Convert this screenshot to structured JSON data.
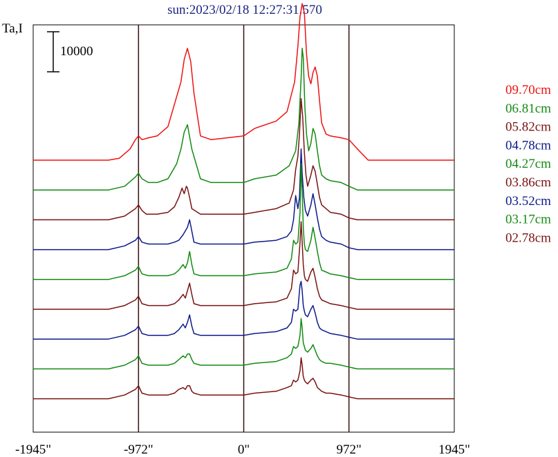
{
  "chart_data": {
    "type": "line",
    "title": "sun:2023/02/18 12:27:31.570",
    "ylabel": "Ta,I",
    "xlabel": "",
    "x_ticks": [
      {
        "value": -1945,
        "label": "-1945\""
      },
      {
        "value": -972,
        "label": "-972\""
      },
      {
        "value": 0,
        "label": "0\""
      },
      {
        "value": 972,
        "label": "972\""
      },
      {
        "value": 1945,
        "label": "1945\""
      }
    ],
    "xlim": [
      -1945,
      1945
    ],
    "vertical_lines": [
      -972,
      0,
      972
    ],
    "scale_bar": {
      "label": "10000",
      "value": 10000
    },
    "grid": false,
    "legend_position": "right",
    "series": [
      {
        "name": "09.70cm",
        "color": "#ee1111",
        "baseline": 80000,
        "x": [
          -1945,
          -1250,
          -1150,
          -1050,
          -1000,
          -972,
          -940,
          -880,
          -800,
          -700,
          -580,
          -550,
          -520,
          -490,
          -460,
          -400,
          -300,
          0,
          100,
          300,
          400,
          470,
          500,
          520,
          540,
          560,
          580,
          600,
          620,
          640,
          660,
          680,
          700,
          720,
          760,
          800,
          900,
          972,
          1050,
          1150,
          1945
        ],
        "y": [
          0,
          0,
          500,
          3000,
          5500,
          6500,
          5500,
          6000,
          6500,
          9000,
          21000,
          27000,
          30000,
          26500,
          18000,
          6500,
          5500,
          6500,
          8500,
          10500,
          13000,
          21000,
          30500,
          38500,
          42000,
          39500,
          28500,
          22500,
          20500,
          23500,
          25000,
          22500,
          16000,
          10000,
          7000,
          6500,
          6000,
          5500,
          3000,
          0,
          0
        ]
      },
      {
        "name": "06.81cm",
        "color": "#128a12",
        "baseline": 72000,
        "x": [
          -1945,
          -1250,
          -1100,
          -1000,
          -972,
          -940,
          -880,
          -800,
          -700,
          -620,
          -580,
          -550,
          -520,
          -480,
          -400,
          -300,
          0,
          100,
          300,
          420,
          480,
          510,
          530,
          540,
          550,
          565,
          580,
          600,
          620,
          640,
          660,
          680,
          700,
          720,
          760,
          800,
          900,
          972,
          1050,
          1150,
          1945
        ],
        "y": [
          0,
          0,
          1000,
          3500,
          4500,
          3000,
          2000,
          2000,
          3000,
          7000,
          11000,
          15500,
          17500,
          11000,
          3000,
          2000,
          2000,
          3000,
          4000,
          6500,
          10500,
          18000,
          30000,
          38000,
          35500,
          22000,
          15000,
          10500,
          12500,
          16500,
          15000,
          10500,
          6500,
          4000,
          3000,
          2500,
          2000,
          1000,
          0,
          0,
          0
        ]
      },
      {
        "name": "05.82cm",
        "color": "#7a1212",
        "baseline": 64000,
        "x": [
          -1945,
          -1250,
          -1100,
          -1000,
          -972,
          -940,
          -900,
          -880,
          -800,
          -700,
          -640,
          -600,
          -570,
          -550,
          -530,
          -520,
          -500,
          -480,
          -400,
          -300,
          0,
          100,
          300,
          420,
          460,
          480,
          500,
          515,
          530,
          545,
          560,
          575,
          590,
          620,
          640,
          660,
          680,
          700,
          720,
          760,
          800,
          900,
          972,
          1050,
          1150,
          1500,
          1945
        ],
        "y": [
          0,
          0,
          1000,
          3000,
          4000,
          2500,
          1500,
          1500,
          1500,
          2000,
          3500,
          6000,
          8500,
          7000,
          9000,
          8500,
          6000,
          3000,
          1500,
          1500,
          1500,
          2000,
          3000,
          4500,
          8000,
          13500,
          17000,
          23000,
          32500,
          27500,
          18000,
          12000,
          9000,
          12000,
          14500,
          13000,
          9500,
          6000,
          4000,
          3000,
          2000,
          1500,
          500,
          0,
          0,
          0,
          0
        ]
      },
      {
        "name": "04.78cm",
        "color": "#0c1a8c",
        "baseline": 56000,
        "x": [
          -1945,
          -1250,
          -1100,
          -1000,
          -972,
          -940,
          -880,
          -800,
          -700,
          -640,
          -600,
          -560,
          -520,
          -500,
          -480,
          -460,
          -400,
          -300,
          0,
          100,
          300,
          400,
          440,
          460,
          480,
          500,
          515,
          530,
          540,
          555,
          570,
          590,
          620,
          640,
          660,
          680,
          700,
          720,
          760,
          800,
          900,
          972,
          1050,
          1150,
          1945
        ],
        "y": [
          0,
          0,
          1000,
          2500,
          3500,
          2000,
          1500,
          1500,
          1500,
          2000,
          2500,
          4000,
          6000,
          8000,
          5000,
          2000,
          1500,
          1500,
          1500,
          2000,
          2500,
          3500,
          5000,
          8000,
          14500,
          11000,
          14000,
          27000,
          20500,
          14000,
          10500,
          9000,
          12000,
          15000,
          12000,
          8500,
          5500,
          3500,
          2500,
          2000,
          1500,
          500,
          0,
          0,
          0
        ]
      },
      {
        "name": "04.27cm",
        "color": "#128a12",
        "baseline": 48000,
        "x": [
          -1945,
          -1250,
          -1100,
          -1000,
          -972,
          -940,
          -880,
          -800,
          -700,
          -640,
          -600,
          -560,
          -540,
          -520,
          -500,
          -480,
          -460,
          -400,
          -300,
          0,
          100,
          300,
          400,
          440,
          460,
          480,
          500,
          520,
          530,
          540,
          550,
          560,
          570,
          590,
          620,
          640,
          660,
          680,
          700,
          720,
          760,
          800,
          900,
          972,
          1050,
          1150,
          1945
        ],
        "y": [
          0,
          0,
          1000,
          2500,
          3500,
          1500,
          1000,
          1000,
          1000,
          1500,
          2500,
          4000,
          3000,
          4500,
          7500,
          4000,
          1500,
          1000,
          1000,
          1000,
          1500,
          2000,
          3000,
          5500,
          10500,
          9500,
          10000,
          18000,
          31000,
          24000,
          14000,
          9500,
          8000,
          7500,
          10500,
          14000,
          11000,
          7500,
          4500,
          2500,
          2000,
          1500,
          1000,
          500,
          0,
          0,
          0
        ]
      },
      {
        "name": "03.86cm",
        "color": "#7a1212",
        "baseline": 40000,
        "x": [
          -1945,
          -1250,
          -1100,
          -1000,
          -972,
          -940,
          -880,
          -800,
          -700,
          -640,
          -600,
          -560,
          -540,
          -520,
          -500,
          -480,
          -460,
          -400,
          -300,
          0,
          100,
          300,
          400,
          440,
          460,
          480,
          500,
          520,
          530,
          540,
          550,
          560,
          570,
          590,
          620,
          640,
          660,
          680,
          700,
          720,
          760,
          800,
          900,
          972,
          1050,
          1150,
          1945
        ],
        "y": [
          0,
          0,
          1000,
          2500,
          3500,
          1500,
          1000,
          1000,
          1000,
          1500,
          2500,
          4000,
          3000,
          5000,
          7000,
          4000,
          1500,
          1000,
          1000,
          1000,
          1500,
          2000,
          3000,
          5500,
          10500,
          9500,
          10000,
          18000,
          23500,
          18000,
          12000,
          9000,
          8000,
          7500,
          10000,
          11000,
          8500,
          5500,
          3500,
          2500,
          2000,
          1500,
          1000,
          500,
          0,
          0,
          0
        ]
      },
      {
        "name": "03.52cm",
        "color": "#0c1a8c",
        "baseline": 32000,
        "x": [
          -1945,
          -1250,
          -1100,
          -1000,
          -972,
          -940,
          -880,
          -800,
          -700,
          -640,
          -600,
          -560,
          -540,
          -520,
          -500,
          -480,
          -460,
          -400,
          -300,
          0,
          100,
          300,
          400,
          440,
          460,
          480,
          500,
          520,
          530,
          540,
          550,
          560,
          570,
          590,
          620,
          640,
          660,
          680,
          700,
          720,
          760,
          800,
          900,
          972,
          1050,
          1150,
          1945
        ],
        "y": [
          0,
          0,
          1000,
          2500,
          3500,
          1500,
          1000,
          1000,
          1000,
          1500,
          2500,
          4000,
          3000,
          4500,
          6500,
          3500,
          1500,
          1000,
          1000,
          1000,
          1500,
          2000,
          3000,
          4500,
          8000,
          7500,
          8000,
          14500,
          15500,
          13000,
          9000,
          7500,
          6500,
          6000,
          8000,
          9000,
          7000,
          4500,
          3000,
          2500,
          2000,
          1500,
          1000,
          500,
          0,
          0,
          0
        ]
      },
      {
        "name": "03.17cm",
        "color": "#128a12",
        "baseline": 24000,
        "x": [
          -1945,
          -1250,
          -1100,
          -1000,
          -972,
          -940,
          -880,
          -800,
          -700,
          -640,
          -600,
          -560,
          -540,
          -520,
          -500,
          -480,
          -460,
          -400,
          -300,
          0,
          100,
          300,
          400,
          440,
          460,
          480,
          500,
          520,
          530,
          540,
          550,
          560,
          570,
          590,
          620,
          640,
          660,
          680,
          700,
          720,
          760,
          800,
          900,
          972,
          1050,
          1150,
          1945
        ],
        "y": [
          0,
          0,
          1000,
          2500,
          3500,
          1500,
          1000,
          1000,
          1000,
          1500,
          2500,
          3500,
          3000,
          4000,
          4000,
          2500,
          1500,
          1000,
          1000,
          1000,
          1500,
          2000,
          3000,
          4000,
          6000,
          5500,
          6000,
          9000,
          13500,
          11000,
          7000,
          6000,
          5000,
          4500,
          5500,
          6500,
          5000,
          3500,
          2500,
          2000,
          1500,
          1500,
          1000,
          500,
          0,
          0,
          0
        ]
      },
      {
        "name": "02.78cm",
        "color": "#7a1212",
        "baseline": 16000,
        "x": [
          -1945,
          -1250,
          -1100,
          -1000,
          -972,
          -940,
          -880,
          -800,
          -700,
          -640,
          -600,
          -560,
          -540,
          -520,
          -500,
          -480,
          -460,
          -400,
          -300,
          0,
          100,
          300,
          400,
          440,
          460,
          480,
          500,
          520,
          530,
          540,
          550,
          560,
          570,
          590,
          620,
          640,
          660,
          680,
          700,
          720,
          760,
          800,
          900,
          972,
          1050,
          1150,
          1945
        ],
        "y": [
          0,
          0,
          1000,
          2500,
          3500,
          1500,
          1000,
          1000,
          1000,
          1500,
          2500,
          3000,
          2500,
          3500,
          3500,
          2000,
          1500,
          1000,
          1000,
          1000,
          1500,
          2000,
          3000,
          3500,
          5000,
          4500,
          5000,
          7500,
          11000,
          9000,
          6000,
          5000,
          4500,
          4000,
          5000,
          5500,
          4500,
          3000,
          2500,
          2000,
          1500,
          1500,
          1000,
          500,
          0,
          0,
          0
        ]
      }
    ]
  }
}
